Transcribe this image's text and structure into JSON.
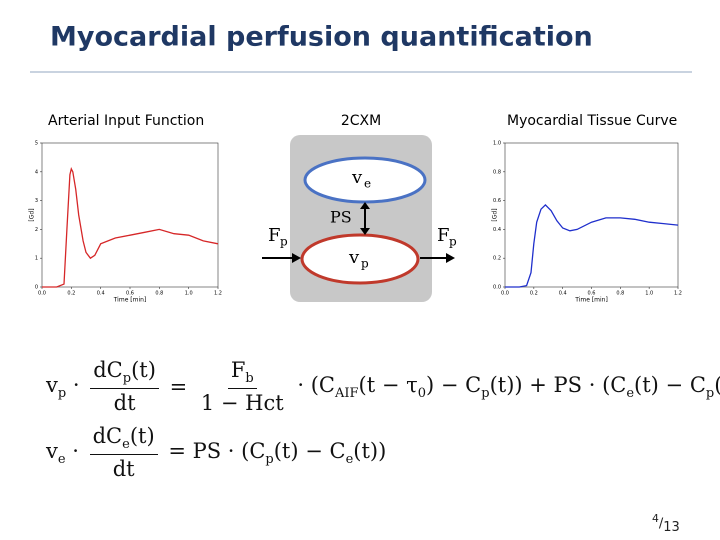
{
  "header": {
    "title": "Myocardial perfusion quantification"
  },
  "chart_data": [
    {
      "type": "line",
      "title": "Arterial Input Function",
      "x_label": "Time [min]",
      "y_label": "[Gd]",
      "color": "#d62728",
      "xlim": [
        0,
        1.2
      ],
      "ylim": [
        0,
        5
      ],
      "xticks": [
        {
          "value": 0,
          "label": "0.0"
        },
        0.2,
        0.4,
        0.6,
        0.8,
        {
          "value": 1,
          "label": "1.0"
        },
        1.2
      ],
      "yticks": [
        0,
        1,
        2,
        3,
        4,
        5
      ],
      "x": [
        0,
        0.1,
        0.15,
        0.17,
        0.19,
        0.2,
        0.21,
        0.23,
        0.25,
        0.28,
        0.3,
        0.33,
        0.36,
        0.4,
        0.45,
        0.5,
        0.6,
        0.7,
        0.8,
        0.9,
        1.0,
        1.1,
        1.2
      ],
      "values": [
        0,
        0,
        0.1,
        2.0,
        3.9,
        4.1,
        4.0,
        3.4,
        2.5,
        1.6,
        1.2,
        1.0,
        1.1,
        1.5,
        1.6,
        1.7,
        1.8,
        1.9,
        2.0,
        1.85,
        1.8,
        1.6,
        1.5
      ]
    },
    {
      "type": "line",
      "title": "Myocardial Tissue Curve",
      "x_label": "Time [min]",
      "y_label": "[Gd]",
      "color": "#1f2fcc",
      "xlim": [
        0,
        1.2
      ],
      "ylim": [
        0,
        1
      ],
      "xticks": [
        {
          "value": 0,
          "label": "0.0"
        },
        0.2,
        0.4,
        0.6,
        0.8,
        {
          "value": 1,
          "label": "1.0"
        },
        1.2
      ],
      "yticks": [
        {
          "value": 0,
          "label": "0.0"
        },
        0.2,
        0.4,
        0.6,
        0.8,
        {
          "value": 1,
          "label": "1.0"
        }
      ],
      "x": [
        0,
        0.1,
        0.15,
        0.18,
        0.2,
        0.22,
        0.25,
        0.28,
        0.32,
        0.36,
        0.4,
        0.45,
        0.5,
        0.6,
        0.7,
        0.8,
        0.9,
        1.0,
        1.1,
        1.2
      ],
      "values": [
        0,
        0,
        0.01,
        0.1,
        0.3,
        0.45,
        0.54,
        0.57,
        0.53,
        0.46,
        0.41,
        0.39,
        0.4,
        0.45,
        0.48,
        0.48,
        0.47,
        0.45,
        0.44,
        0.43
      ]
    }
  ],
  "diagram": {
    "title": "2CXM",
    "ve": {
      "symbol": "v",
      "subscript": "e"
    },
    "vp": {
      "symbol": "v",
      "subscript": "p"
    },
    "ps": "PS",
    "fp_in": {
      "symbol": "F",
      "subscript": "p"
    },
    "fp_out": {
      "symbol": "F",
      "subscript": "p"
    }
  },
  "equations": [
    [
      {
        "segs": [
          {
            "t": "v"
          },
          {
            "sub": "p"
          },
          {
            "t": " · "
          }
        ]
      },
      {
        "num": [
          {
            "t": "dC"
          },
          {
            "sub": "p"
          },
          {
            "t": "(t)"
          }
        ],
        "den": [
          {
            "t": "dt"
          }
        ]
      },
      {
        "segs": [
          {
            "t": " = "
          }
        ]
      },
      {
        "num": [
          {
            "t": "F"
          },
          {
            "sub": "b"
          }
        ],
        "den": [
          {
            "t": "1 − Hct"
          }
        ]
      },
      {
        "segs": [
          {
            "t": " · (C"
          },
          {
            "sub": "AIF"
          },
          {
            "t": "(t − τ"
          },
          {
            "sub": "0"
          },
          {
            "t": ") − C"
          },
          {
            "sub": "p"
          },
          {
            "t": "(t)) + PS · (C"
          },
          {
            "sub": "e"
          },
          {
            "t": "(t) − C"
          },
          {
            "sub": "p"
          },
          {
            "t": "(t))"
          }
        ]
      }
    ],
    [
      {
        "segs": [
          {
            "t": "v"
          },
          {
            "sub": "e"
          },
          {
            "t": " · "
          }
        ]
      },
      {
        "num": [
          {
            "t": "dC"
          },
          {
            "sub": "e"
          },
          {
            "t": "(t)"
          }
        ],
        "den": [
          {
            "t": "dt"
          }
        ]
      },
      {
        "segs": [
          {
            "t": " = PS · (C"
          },
          {
            "sub": "p"
          },
          {
            "t": "(t) − C"
          },
          {
            "sub": "e"
          },
          {
            "t": "(t))"
          }
        ]
      }
    ]
  ],
  "page": {
    "current": 4,
    "separator": "/",
    "total": 13
  }
}
